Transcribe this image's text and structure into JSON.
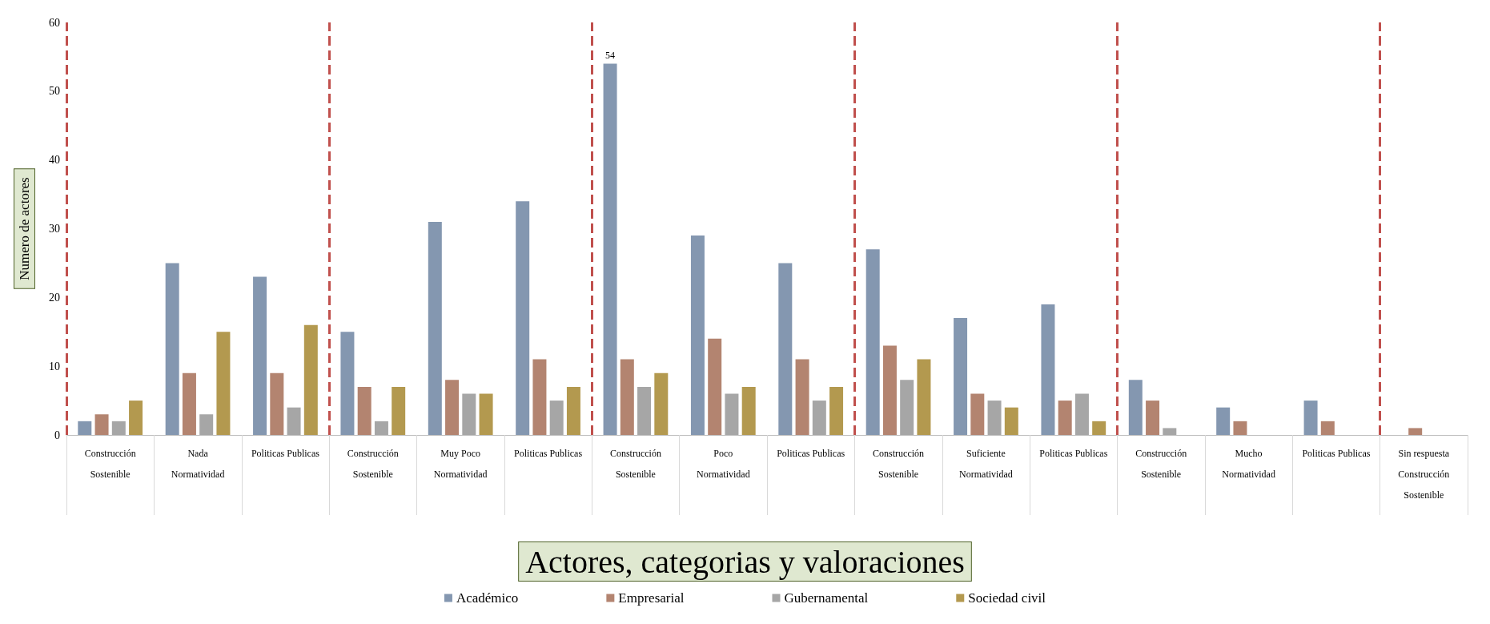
{
  "chart_data": {
    "type": "bar",
    "xlabel": "Actores, categorias y valoraciones",
    "ylabel": "Numero de actores",
    "categories": [
      "Construcción\nSostenible",
      "Nada\nNormatividad",
      "Politicas Publicas",
      "Construcción\nSostenible",
      "Muy Poco\nNormatividad",
      "Politicas Publicas",
      "Construcción\nSostenible",
      "Poco\nNormatividad",
      "Politicas Publicas",
      "Construcción\nSostenible",
      "Suficiente\nNormatividad",
      "Politicas Publicas",
      "Construcción\nSostenible",
      "Mucho\nNormatividad",
      "Politicas Publicas",
      "Sin respuesta\nConstrucción\nSostenible"
    ],
    "series": [
      {
        "name": "Académico",
        "color": "#8497b0",
        "values": [
          2,
          25,
          23,
          15,
          31,
          34,
          54,
          29,
          25,
          27,
          17,
          19,
          8,
          4,
          5,
          0
        ],
        "value_labels": [
          null,
          null,
          null,
          null,
          null,
          null,
          "54",
          null,
          null,
          null,
          null,
          null,
          null,
          null,
          null,
          null
        ]
      },
      {
        "name": "Empresarial",
        "color": "#b38470",
        "values": [
          3,
          9,
          9,
          7,
          8,
          11,
          11,
          14,
          11,
          13,
          6,
          5,
          5,
          2,
          2,
          1
        ]
      },
      {
        "name": "Gubernamental",
        "color": "#a6a6a6",
        "values": [
          2,
          3,
          4,
          2,
          6,
          5,
          7,
          6,
          5,
          8,
          5,
          6,
          1,
          0,
          0,
          0
        ]
      },
      {
        "name": "Sociedad civil",
        "color": "#b3994f",
        "values": [
          5,
          15,
          16,
          7,
          6,
          7,
          9,
          7,
          7,
          11,
          4,
          2,
          0,
          0,
          0,
          0
        ]
      }
    ],
    "ylim": [
      0,
      60
    ],
    "yticks": [
      0,
      10,
      20,
      30,
      40,
      50,
      60
    ],
    "grid": false,
    "legend": "bottom"
  }
}
